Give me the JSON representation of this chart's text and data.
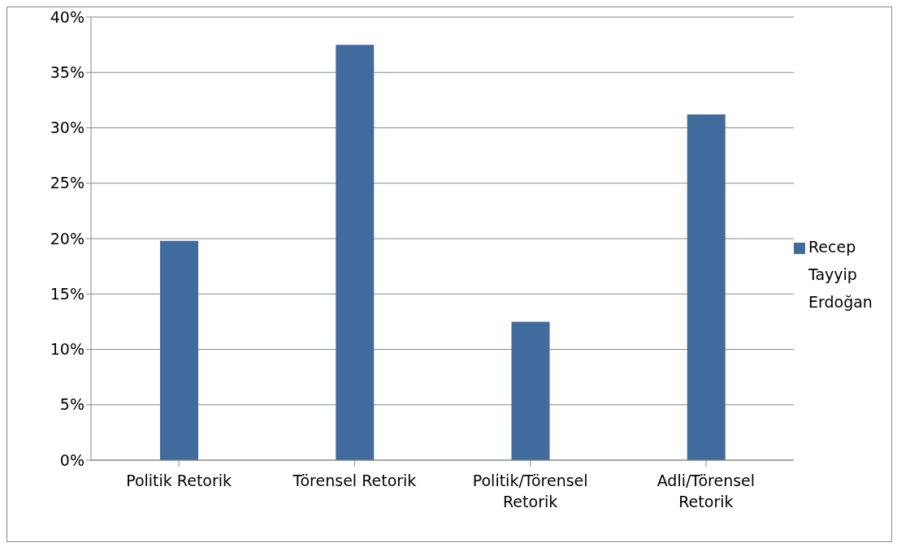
{
  "chart_data": {
    "type": "bar",
    "categories": [
      "Politik Retorik",
      "Törensel Retorik",
      "Politik/Törensel Retorik",
      "Adli/Törensel Retorik"
    ],
    "series": [
      {
        "name": "Recep Tayyip Erdoğan",
        "color": "#416b9c",
        "values": [
          19.8,
          37.5,
          12.5,
          31.2
        ]
      }
    ],
    "ylim": [
      0,
      40
    ],
    "yticks": [
      {
        "value": 0,
        "label": "0%"
      },
      {
        "value": 5,
        "label": "5%"
      },
      {
        "value": 10,
        "label": "10%"
      },
      {
        "value": 15,
        "label": "15%"
      },
      {
        "value": 20,
        "label": "20%"
      },
      {
        "value": 25,
        "label": "25%"
      },
      {
        "value": 30,
        "label": "30%"
      },
      {
        "value": 35,
        "label": "35%"
      },
      {
        "value": 40,
        "label": "40%"
      }
    ],
    "grid": "y",
    "legend": "right"
  }
}
